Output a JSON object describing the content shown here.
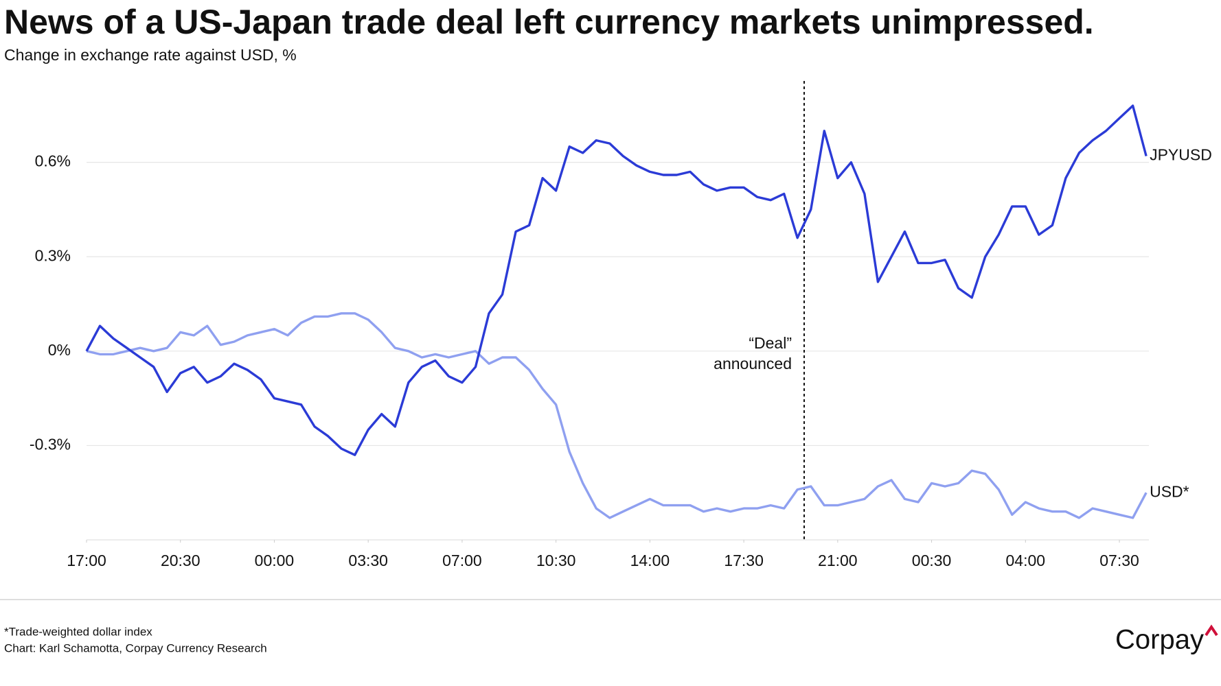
{
  "chart_data": {
    "type": "line",
    "title": "News of a US-Japan trade deal left currency markets unimpressed.",
    "subtitle": "Change in exchange rate against USD, %",
    "x": [
      0,
      0.5,
      1,
      1.5,
      2,
      2.5,
      3,
      3.5,
      4,
      4.5,
      5,
      5.5,
      6,
      6.5,
      7,
      7.5,
      8,
      8.5,
      9,
      9.5,
      10,
      10.5,
      11,
      11.5,
      12,
      12.5,
      13,
      13.5,
      14,
      14.5,
      15,
      15.5,
      16,
      16.5,
      17,
      17.5,
      18,
      18.5,
      19,
      19.5,
      20,
      20.5,
      21,
      21.5,
      22,
      22.5,
      23,
      23.5,
      24,
      24.5,
      25,
      25.5,
      26,
      26.5,
      27,
      27.5,
      28,
      28.5,
      29,
      29.5,
      30,
      30.5,
      31,
      31.5,
      32,
      32.5,
      33,
      33.5,
      34,
      34.5,
      35,
      35.5,
      36,
      36.5,
      37,
      37.5,
      38,
      38.5,
      39,
      39.5
    ],
    "xlim": [
      0,
      39.6
    ],
    "xticks": [
      {
        "value": 0,
        "label": "17:00"
      },
      {
        "value": 3.5,
        "label": "20:30"
      },
      {
        "value": 7,
        "label": "00:00"
      },
      {
        "value": 10.5,
        "label": "03:30"
      },
      {
        "value": 14,
        "label": "07:00"
      },
      {
        "value": 17.5,
        "label": "10:30"
      },
      {
        "value": 21,
        "label": "14:00"
      },
      {
        "value": 24.5,
        "label": "17:30"
      },
      {
        "value": 28,
        "label": "21:00"
      },
      {
        "value": 31.5,
        "label": "00:30"
      },
      {
        "value": 35,
        "label": "04:00"
      },
      {
        "value": 38.5,
        "label": "07:30"
      }
    ],
    "ylim": [
      -0.6,
      0.85
    ],
    "yticks": [
      {
        "value": -0.3,
        "label": "-0.3%"
      },
      {
        "value": 0,
        "label": "0%"
      },
      {
        "value": 0.3,
        "label": "0.3%"
      },
      {
        "value": 0.6,
        "label": "0.6%"
      }
    ],
    "grid": true,
    "series": [
      {
        "name": "JPYUSD",
        "color": "#2b3bd6",
        "values": [
          0,
          0.08,
          0.04,
          0.01,
          -0.02,
          -0.05,
          -0.13,
          -0.07,
          -0.05,
          -0.1,
          -0.08,
          -0.04,
          -0.06,
          -0.09,
          -0.15,
          -0.16,
          -0.17,
          -0.24,
          -0.27,
          -0.31,
          -0.33,
          -0.25,
          -0.2,
          -0.24,
          -0.1,
          -0.05,
          -0.03,
          -0.08,
          -0.1,
          -0.05,
          0.12,
          0.18,
          0.38,
          0.4,
          0.55,
          0.51,
          0.65,
          0.63,
          0.67,
          0.66,
          0.62,
          0.59,
          0.57,
          0.56,
          0.56,
          0.57,
          0.53,
          0.51,
          0.52,
          0.52,
          0.49,
          0.48,
          0.5,
          0.36,
          0.45,
          0.7,
          0.55,
          0.6,
          0.5,
          0.22,
          0.3,
          0.38,
          0.28,
          0.28,
          0.29,
          0.2,
          0.17,
          0.3,
          0.37,
          0.46,
          0.46,
          0.37,
          0.4,
          0.55,
          0.63,
          0.67,
          0.7,
          0.74,
          0.78,
          0.62
        ]
      },
      {
        "name": "USD*",
        "color": "#8fa0f0",
        "values": [
          0,
          -0.01,
          -0.01,
          0,
          0.01,
          0,
          0.01,
          0.06,
          0.05,
          0.08,
          0.02,
          0.03,
          0.05,
          0.06,
          0.07,
          0.05,
          0.09,
          0.11,
          0.11,
          0.12,
          0.12,
          0.1,
          0.06,
          0.01,
          0,
          -0.02,
          -0.01,
          -0.02,
          -0.01,
          0,
          -0.04,
          -0.02,
          -0.02,
          -0.06,
          -0.12,
          -0.17,
          -0.32,
          -0.42,
          -0.5,
          -0.53,
          -0.51,
          -0.49,
          -0.47,
          -0.49,
          -0.49,
          -0.49,
          -0.51,
          -0.5,
          -0.51,
          -0.5,
          -0.5,
          -0.49,
          -0.5,
          -0.44,
          -0.43,
          -0.49,
          -0.49,
          -0.48,
          -0.47,
          -0.43,
          -0.41,
          -0.47,
          -0.48,
          -0.42,
          -0.43,
          -0.42,
          -0.38,
          -0.39,
          -0.44,
          -0.52,
          -0.48,
          -0.5,
          -0.51,
          -0.51,
          -0.53,
          -0.5,
          -0.51,
          -0.52,
          -0.53,
          -0.45
        ]
      }
    ],
    "annotations": [
      {
        "lines": [
          "“Deal”",
          "announced"
        ],
        "x": 26.75
      }
    ],
    "note": "*Trade-weighted dollar index",
    "source": "Chart: Karl Schamotta, Corpay Currency Research",
    "brand": "Corpay"
  }
}
